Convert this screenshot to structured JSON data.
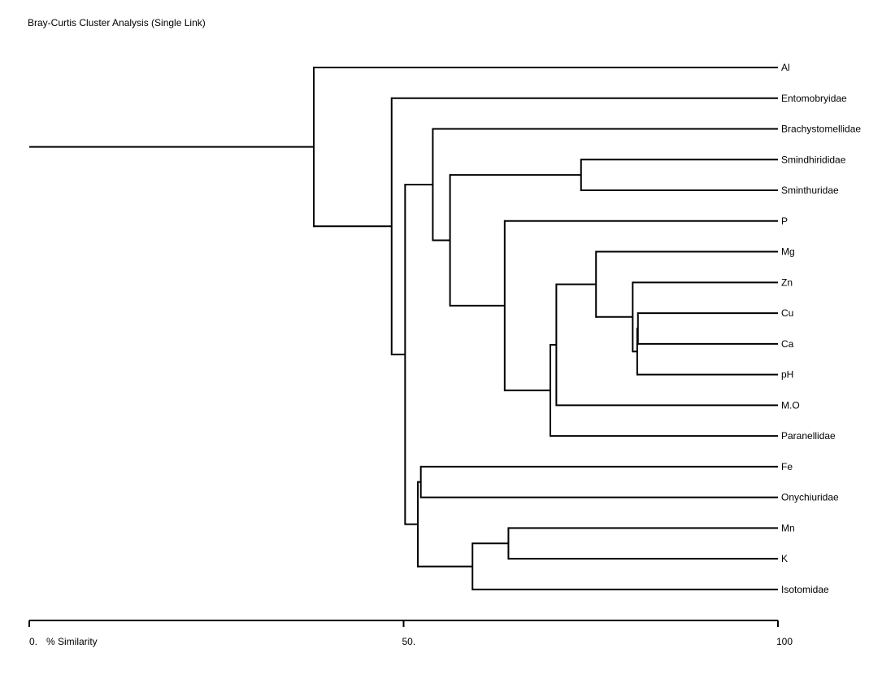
{
  "chart_data": {
    "type": "dendrogram",
    "title": "Bray-Curtis Cluster Analysis (Single Link)",
    "xlabel": "% Similarity",
    "xlim": [
      0,
      100
    ],
    "ticks": [
      {
        "value": 0,
        "label": "0."
      },
      {
        "value": 50,
        "label": "50."
      },
      {
        "value": 100,
        "label": "100"
      }
    ],
    "leaves": [
      "Al",
      "Entomobryidae",
      "Brachystomellidae",
      "Smindhirididae",
      "Sminthuridae",
      "P",
      "Mg",
      "Zn",
      "Cu",
      "Ca",
      "pH",
      "M.O",
      "Paranellidae",
      "Fe",
      "Onychiuridae",
      "Mn",
      "K",
      "Isotomidae"
    ],
    "tree": {
      "sim": 38.0,
      "children": [
        {
          "leaf": 0
        },
        {
          "sim": 48.4,
          "children": [
            {
              "leaf": 1
            },
            {
              "sim": 50.2,
              "children": [
                {
                  "sim": 53.9,
                  "children": [
                    {
                      "leaf": 2
                    },
                    {
                      "sim": 56.2,
                      "children": [
                        {
                          "sim": 73.7,
                          "children": [
                            {
                              "leaf": 3
                            },
                            {
                              "leaf": 4
                            }
                          ]
                        },
                        {
                          "sim": 63.5,
                          "children": [
                            {
                              "leaf": 5
                            },
                            {
                              "sim": 69.6,
                              "children": [
                                {
                                  "sim": 70.4,
                                  "children": [
                                    {
                                      "sim": 75.7,
                                      "children": [
                                        {
                                          "leaf": 6
                                        },
                                        {
                                          "sim": 80.6,
                                          "children": [
                                            {
                                              "leaf": 7
                                            },
                                            {
                                              "sim": 81.2,
                                              "children": [
                                                {
                                                  "sim": 81.3,
                                                  "children": [
                                                    {
                                                      "leaf": 8
                                                    },
                                                    {
                                                      "leaf": 9
                                                    }
                                                  ]
                                                },
                                                {
                                                  "leaf": 10
                                                }
                                              ]
                                            }
                                          ]
                                        }
                                      ]
                                    },
                                    {
                                      "leaf": 11
                                    }
                                  ]
                                },
                                {
                                  "leaf": 12
                                }
                              ]
                            }
                          ]
                        }
                      ]
                    }
                  ]
                },
                {
                  "sim": 51.9,
                  "children": [
                    {
                      "sim": 52.3,
                      "children": [
                        {
                          "leaf": 13
                        },
                        {
                          "leaf": 14
                        }
                      ]
                    },
                    {
                      "sim": 59.2,
                      "children": [
                        {
                          "sim": 64.0,
                          "children": [
                            {
                              "leaf": 15
                            },
                            {
                              "leaf": 16
                            }
                          ]
                        },
                        {
                          "leaf": 17
                        }
                      ]
                    }
                  ]
                }
              ]
            }
          ]
        }
      ]
    }
  }
}
